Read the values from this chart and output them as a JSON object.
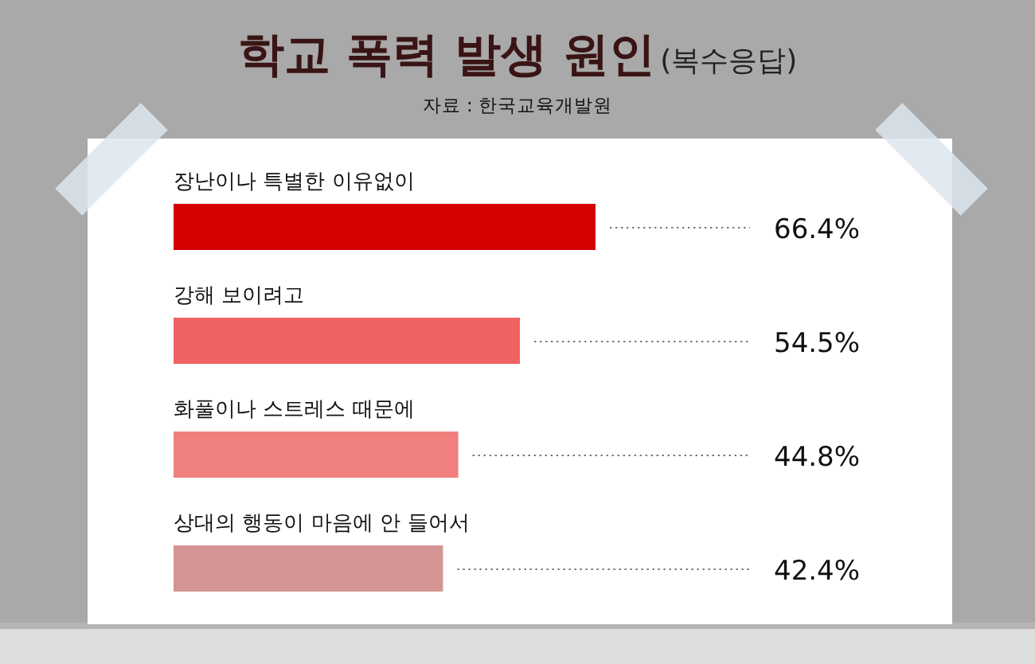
{
  "chart_data": {
    "type": "bar",
    "orientation": "horizontal",
    "title": "학교 폭력 발생 원인(복수응답)",
    "subtitle": "자료 : 한국교육개발원",
    "categories": [
      "장난이나 특별한 이유없이",
      "강해 보이려고",
      "화풀이나 스트레스 때문에",
      "상대의 행동이 마음에 안 들어서"
    ],
    "values": [
      66.4,
      54.5,
      44.8,
      42.4
    ],
    "colors": [
      "#d50000",
      "#ef6262",
      "#ef807d",
      "#d49494"
    ],
    "value_labels": [
      "66.4%",
      "54.5%",
      "44.8%",
      "42.4%"
    ],
    "tick_labels": "y"
  }
}
